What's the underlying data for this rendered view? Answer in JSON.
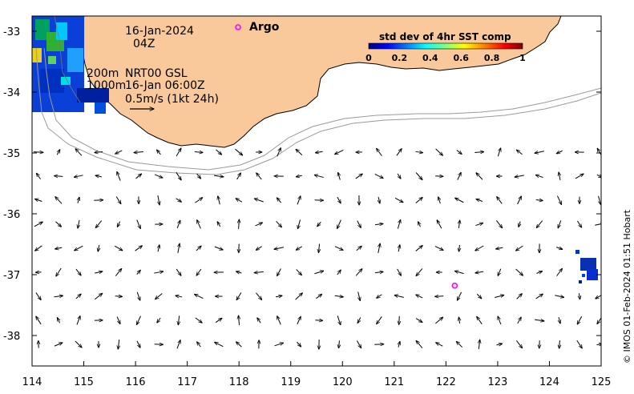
{
  "map": {
    "date_line1": "16-Jan-2024",
    "date_line2": "04Z",
    "depth_200": "200m",
    "depth_1000": "1000m",
    "product": "NRT00 GSL",
    "product_time": "16-Jan 06:00Z",
    "scale_label": "0.5m/s (1kt 24h)",
    "argo_label": "Argo",
    "colors": {
      "land": "#fac99b",
      "argo": "#ff00ff",
      "vector": "#000000",
      "isobath": "#a0a0a0"
    }
  },
  "colorbar": {
    "title": "std dev of 4hr SST comp",
    "ticks": [
      "0",
      "0.2",
      "0.4",
      "0.6",
      "0.8",
      "1"
    ],
    "colormap": [
      "#00007f",
      "#0000ff",
      "#0080ff",
      "#00ffff",
      "#80ff80",
      "#ffff00",
      "#ff8000",
      "#ff0000",
      "#7f0000"
    ]
  },
  "axes": {
    "x_ticks": [
      "114",
      "115",
      "116",
      "117",
      "118",
      "119",
      "120",
      "121",
      "122",
      "123",
      "124",
      "125"
    ],
    "y_ticks": [
      "-33",
      "-34",
      "-35",
      "-36",
      "-37",
      "-38"
    ]
  },
  "argo_float": {
    "lon": 122.17,
    "lat": -37.18
  },
  "credit": "© IMOS 01-Feb-2024 01:51 Hobart"
}
